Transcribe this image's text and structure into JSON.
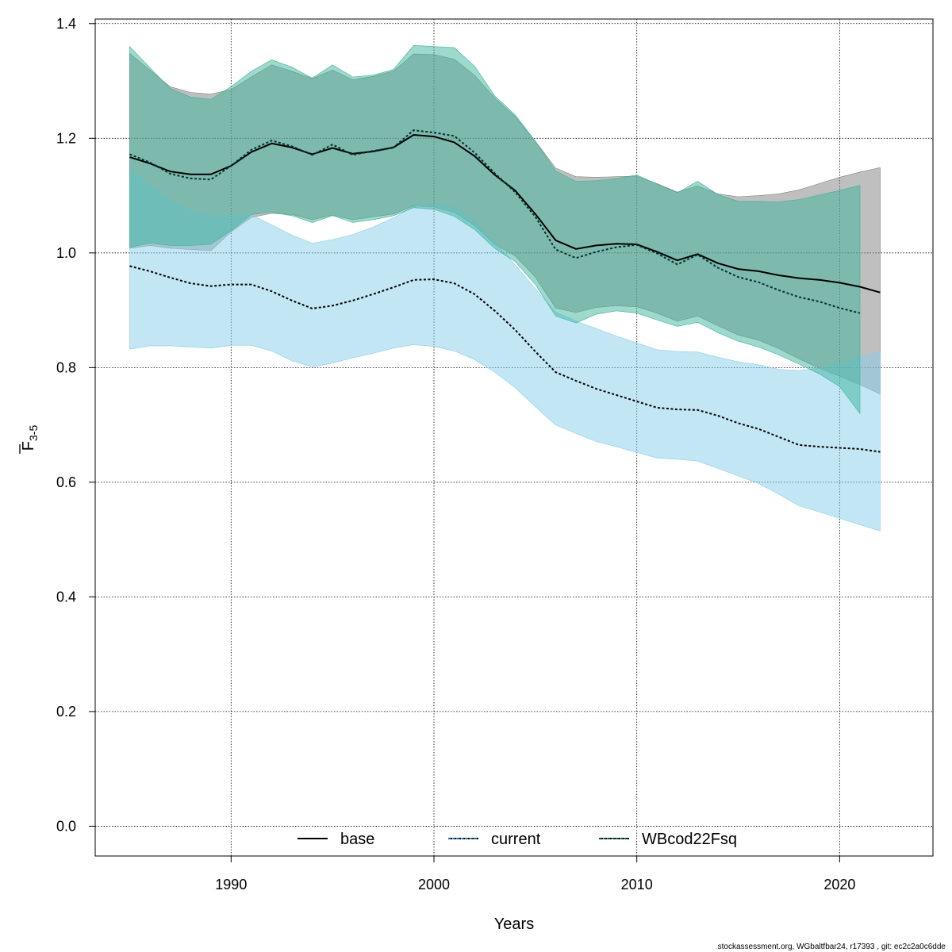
{
  "chart_data": {
    "type": "line",
    "title": "",
    "xlabel": "Years",
    "ylabel": {
      "main": "F",
      "sub": "3-5"
    },
    "xlim": [
      1983.3,
      2024.6
    ],
    "ylim": [
      -0.052,
      1.408
    ],
    "x_ticks": [
      1990,
      2000,
      2010,
      2020
    ],
    "y_ticks": [
      0.0,
      0.2,
      0.4,
      0.6,
      0.8,
      1.0,
      1.2,
      1.4
    ],
    "y_tick_labels": [
      "0.0",
      "0.2",
      "0.4",
      "0.6",
      "0.8",
      "1.0",
      "1.2",
      "1.4"
    ],
    "grid": true,
    "legend_position": "bottom-center",
    "series": [
      {
        "name": "base",
        "line_style": "solid",
        "line_color": "#000000",
        "band_color": "#808080",
        "x": [
          1985,
          1986,
          1987,
          1988,
          1989,
          1990,
          1991,
          1992,
          1993,
          1994,
          1995,
          1996,
          1997,
          1998,
          1999,
          2000,
          2001,
          2002,
          2003,
          2004,
          2005,
          2006,
          2007,
          2008,
          2009,
          2010,
          2011,
          2012,
          2013,
          2014,
          2015,
          2016,
          2017,
          2018,
          2019,
          2020,
          2021,
          2022
        ],
        "mean": [
          1.167,
          1.156,
          1.142,
          1.137,
          1.137,
          1.152,
          1.176,
          1.191,
          1.184,
          1.172,
          1.183,
          1.173,
          1.177,
          1.184,
          1.206,
          1.203,
          1.193,
          1.169,
          1.136,
          1.109,
          1.068,
          1.022,
          1.007,
          1.013,
          1.016,
          1.015,
          1.002,
          0.987,
          0.998,
          0.982,
          0.972,
          0.968,
          0.961,
          0.956,
          0.953,
          0.948,
          0.941,
          0.931
        ],
        "lower": [
          1.008,
          1.013,
          1.008,
          1.006,
          1.004,
          1.037,
          1.062,
          1.069,
          1.067,
          1.058,
          1.066,
          1.058,
          1.063,
          1.068,
          1.082,
          1.08,
          1.071,
          1.048,
          1.015,
          0.995,
          0.958,
          0.904,
          0.896,
          0.905,
          0.908,
          0.906,
          0.895,
          0.881,
          0.89,
          0.873,
          0.857,
          0.848,
          0.833,
          0.815,
          0.799,
          0.785,
          0.77,
          0.754
        ],
        "upper": [
          1.348,
          1.319,
          1.29,
          1.28,
          1.277,
          1.285,
          1.307,
          1.328,
          1.317,
          1.304,
          1.319,
          1.302,
          1.308,
          1.317,
          1.347,
          1.346,
          1.338,
          1.31,
          1.27,
          1.238,
          1.195,
          1.148,
          1.133,
          1.132,
          1.133,
          1.134,
          1.121,
          1.106,
          1.117,
          1.103,
          1.098,
          1.1,
          1.103,
          1.11,
          1.121,
          1.132,
          1.141,
          1.149
        ]
      },
      {
        "name": "current",
        "line_style": "dotted",
        "line_color": "#000000",
        "band_color": "#87CEEB",
        "x": [
          1985,
          1986,
          1987,
          1988,
          1989,
          1990,
          1991,
          1992,
          1993,
          1994,
          1995,
          1996,
          1997,
          1998,
          1999,
          2000,
          2001,
          2002,
          2003,
          2004,
          2005,
          2006,
          2007,
          2008,
          2009,
          2010,
          2011,
          2012,
          2013,
          2014,
          2015,
          2016,
          2017,
          2018,
          2019,
          2020,
          2021,
          2022
        ],
        "mean": [
          0.977,
          0.968,
          0.957,
          0.947,
          0.942,
          0.945,
          0.945,
          0.933,
          0.917,
          0.903,
          0.908,
          0.917,
          0.928,
          0.94,
          0.953,
          0.954,
          0.947,
          0.928,
          0.899,
          0.866,
          0.828,
          0.792,
          0.777,
          0.763,
          0.752,
          0.741,
          0.73,
          0.727,
          0.726,
          0.716,
          0.703,
          0.693,
          0.679,
          0.665,
          0.662,
          0.66,
          0.658,
          0.653
        ],
        "lower": [
          0.832,
          0.838,
          0.838,
          0.836,
          0.834,
          0.839,
          0.839,
          0.829,
          0.812,
          0.801,
          0.808,
          0.817,
          0.825,
          0.834,
          0.84,
          0.837,
          0.829,
          0.814,
          0.792,
          0.765,
          0.732,
          0.7,
          0.685,
          0.671,
          0.662,
          0.652,
          0.642,
          0.64,
          0.637,
          0.624,
          0.611,
          0.598,
          0.579,
          0.559,
          0.548,
          0.537,
          0.526,
          0.515
        ],
        "upper": [
          1.147,
          1.118,
          1.092,
          1.073,
          1.064,
          1.066,
          1.066,
          1.049,
          1.031,
          1.017,
          1.023,
          1.032,
          1.045,
          1.061,
          1.081,
          1.085,
          1.079,
          1.055,
          1.019,
          0.979,
          0.937,
          0.897,
          0.881,
          0.868,
          0.855,
          0.843,
          0.831,
          0.828,
          0.827,
          0.818,
          0.81,
          0.805,
          0.797,
          0.795,
          0.799,
          0.808,
          0.818,
          0.828
        ]
      },
      {
        "name": "WBcod22Fsq",
        "line_style": "dotted",
        "line_color": "#00332E",
        "band_color": "#3CB39B",
        "x": [
          1985,
          1986,
          1987,
          1988,
          1989,
          1990,
          1991,
          1992,
          1993,
          1994,
          1995,
          1996,
          1997,
          1998,
          1999,
          2000,
          2001,
          2002,
          2003,
          2004,
          2005,
          2006,
          2007,
          2008,
          2009,
          2010,
          2011,
          2012,
          2013,
          2014,
          2015,
          2016,
          2017,
          2018,
          2019,
          2020,
          2021
        ],
        "mean": [
          1.172,
          1.158,
          1.138,
          1.13,
          1.128,
          1.152,
          1.18,
          1.196,
          1.186,
          1.171,
          1.189,
          1.171,
          1.178,
          1.184,
          1.214,
          1.21,
          1.204,
          1.175,
          1.139,
          1.106,
          1.063,
          1.006,
          0.991,
          1.002,
          1.01,
          1.014,
          0.999,
          0.98,
          0.997,
          0.974,
          0.958,
          0.949,
          0.935,
          0.923,
          0.915,
          0.904,
          0.895
        ],
        "lower": [
          1.01,
          1.017,
          1.013,
          1.013,
          1.015,
          1.039,
          1.067,
          1.071,
          1.065,
          1.053,
          1.065,
          1.053,
          1.058,
          1.065,
          1.079,
          1.076,
          1.064,
          1.041,
          1.008,
          0.985,
          0.945,
          0.89,
          0.878,
          0.893,
          0.899,
          0.895,
          0.883,
          0.872,
          0.879,
          0.861,
          0.846,
          0.836,
          0.822,
          0.806,
          0.789,
          0.767,
          0.72
        ],
        "upper": [
          1.36,
          1.323,
          1.287,
          1.272,
          1.268,
          1.29,
          1.317,
          1.337,
          1.324,
          1.305,
          1.328,
          1.307,
          1.31,
          1.32,
          1.362,
          1.36,
          1.358,
          1.326,
          1.274,
          1.241,
          1.195,
          1.143,
          1.125,
          1.126,
          1.13,
          1.136,
          1.12,
          1.105,
          1.125,
          1.102,
          1.09,
          1.09,
          1.089,
          1.093,
          1.101,
          1.109,
          1.118
        ]
      }
    ],
    "legend": [
      {
        "label": "base",
        "style": "solid",
        "color": "#000000"
      },
      {
        "label": "current",
        "style": "dotted",
        "color": "#1f6fa6"
      },
      {
        "label": "WBcod22Fsq",
        "style": "dotted",
        "color": "#00513f"
      }
    ]
  },
  "footer_text": "stockassessment.org, WGbaltfbar24, r17393 , git: ec2c2a0c6dde"
}
